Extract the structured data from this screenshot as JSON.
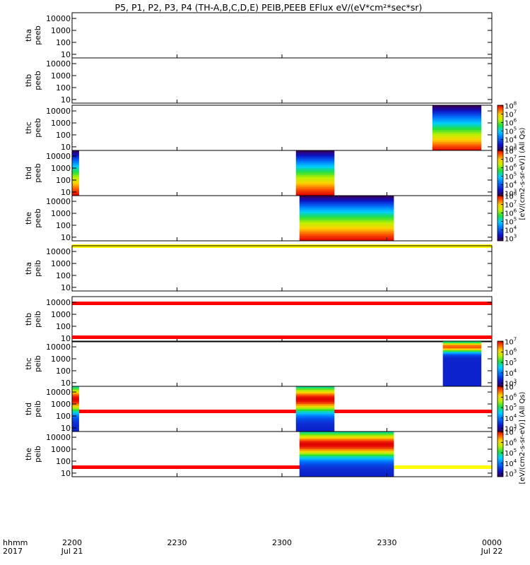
{
  "chart_data": {
    "type": "heatmap",
    "title": "P5, P1, P2, P3, P4 (TH-A,B,C,D,E) PEIB,PEEB EFlux eV/(eV*cm²*sec*sr)",
    "x_axis": {
      "label_line1": "hhmm",
      "label_line2": "2017",
      "range_minutes": [
        0,
        120
      ],
      "ticks": [
        {
          "minute": 0,
          "label": "2200",
          "sublabel": "Jul 21"
        },
        {
          "minute": 30,
          "label": "2230",
          "sublabel": ""
        },
        {
          "minute": 60,
          "label": "2300",
          "sublabel": ""
        },
        {
          "minute": 90,
          "label": "2330",
          "sublabel": ""
        },
        {
          "minute": 120,
          "label": "0000",
          "sublabel": "Jul 22"
        }
      ]
    },
    "y_axis": {
      "scale": "log",
      "range_eV": [
        5,
        30000
      ],
      "ticks": [
        {
          "value": 10,
          "label": "10"
        },
        {
          "value": 100,
          "label": "100"
        },
        {
          "value": 1000,
          "label": "1000"
        },
        {
          "value": 10000,
          "label": "10000"
        }
      ]
    },
    "colorbar_electron": {
      "title": "[eV/(cm2-s-sr-eV)] (All Qs)",
      "ticks": [
        {
          "exp": 3,
          "label_base": "10",
          "label_exp": "3"
        },
        {
          "exp": 4,
          "label_base": "10",
          "label_exp": "4"
        },
        {
          "exp": 5,
          "label_base": "10",
          "label_exp": "5"
        },
        {
          "exp": 6,
          "label_base": "10",
          "label_exp": "6"
        },
        {
          "exp": 7,
          "label_base": "10",
          "label_exp": "7"
        },
        {
          "exp": 8,
          "label_base": "10",
          "label_exp": "8"
        }
      ]
    },
    "colorbar_ion": {
      "title": "[eV/(cm2-s-sr-eV)] (All Qs)",
      "ticks": [
        {
          "exp": 3,
          "label_base": "10",
          "label_exp": "3"
        },
        {
          "exp": 4,
          "label_base": "10",
          "label_exp": "4"
        },
        {
          "exp": 5,
          "label_base": "10",
          "label_exp": "5"
        },
        {
          "exp": 6,
          "label_base": "10",
          "label_exp": "6"
        },
        {
          "exp": 7,
          "label_base": "10",
          "label_exp": "7"
        }
      ]
    },
    "panels": [
      {
        "probe": "tha",
        "product": "peeb",
        "data_intervals": [],
        "bar_above": null,
        "colorbar": null
      },
      {
        "probe": "thb",
        "product": "peeb",
        "data_intervals": [],
        "bar_above": null,
        "colorbar": null
      },
      {
        "probe": "thc",
        "product": "peeb",
        "data_intervals": [
          {
            "start_min": 103,
            "end_min": 117,
            "profile": "electron-quiet"
          }
        ],
        "bar_above": null,
        "colorbar": "electron"
      },
      {
        "probe": "thd",
        "product": "peeb",
        "data_intervals": [
          {
            "start_min": 0,
            "end_min": 2,
            "profile": "electron-edge"
          },
          {
            "start_min": 64,
            "end_min": 75,
            "profile": "electron-active"
          }
        ],
        "bar_above": null,
        "colorbar": "electron"
      },
      {
        "probe": "the",
        "product": "peeb",
        "data_intervals": [
          {
            "start_min": 65,
            "end_min": 92,
            "profile": "electron-active"
          }
        ],
        "bar_above": null,
        "colorbar": "electron"
      },
      {
        "probe": "tha",
        "product": "peib",
        "data_intervals": [],
        "bar_above": [
          {
            "start_min": 0,
            "end_min": 120,
            "color": "#ffff00"
          }
        ],
        "colorbar": null
      },
      {
        "probe": "thb",
        "product": "peib",
        "data_intervals": [],
        "bar_above": [
          {
            "start_min": 0,
            "end_min": 120,
            "color": "#ff0000"
          }
        ],
        "colorbar": null
      },
      {
        "probe": "thc",
        "product": "peib",
        "data_intervals": [
          {
            "start_min": 106,
            "end_min": 117,
            "profile": "ion-quiet"
          }
        ],
        "bar_above": [
          {
            "start_min": 0,
            "end_min": 120,
            "color": "#ff0000"
          }
        ],
        "colorbar": "ion"
      },
      {
        "probe": "thd",
        "product": "peib",
        "data_intervals": [
          {
            "start_min": 0,
            "end_min": 2,
            "profile": "ion-edge"
          },
          {
            "start_min": 64,
            "end_min": 75,
            "profile": "ion-active"
          }
        ],
        "bar_above": [
          {
            "start_min": 0,
            "end_min": 120,
            "color": "#ff0000"
          }
        ],
        "colorbar": "ion"
      },
      {
        "probe": "the",
        "product": "peib",
        "data_intervals": [
          {
            "start_min": 65,
            "end_min": 92,
            "profile": "ion-active"
          }
        ],
        "bar_above": [
          {
            "start_min": 0,
            "end_min": 91,
            "color": "#ff0000"
          },
          {
            "start_min": 91,
            "end_min": 120,
            "color": "#ffff00"
          }
        ],
        "colorbar": "ion"
      }
    ]
  }
}
